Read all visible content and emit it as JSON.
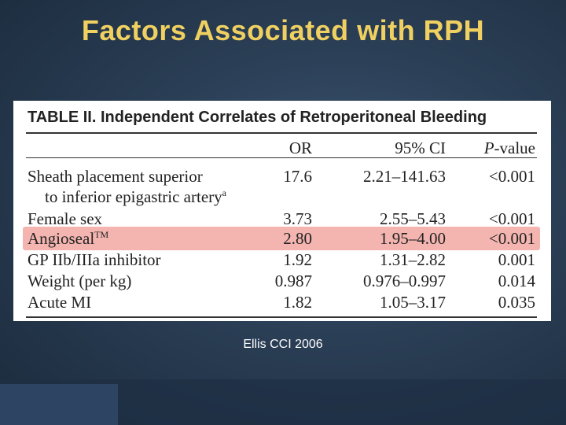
{
  "slide": {
    "title": "Factors Associated with RPH",
    "citation": "Ellis  CCI 2006"
  },
  "table": {
    "heading": "TABLE II.  Independent Correlates of Retroperitoneal Bleeding",
    "columns": {
      "or": "OR",
      "ci": "95% CI",
      "p_italic": "P",
      "p_rest": "-value"
    },
    "rows": [
      {
        "label": "Sheath placement superior",
        "label2": "to inferior epigastric artery",
        "sup": "a",
        "or": "17.6",
        "ci": "2.21–141.63",
        "p": "<0.001"
      },
      {
        "label": "Female sex",
        "or": "3.73",
        "ci": "2.55–5.43",
        "p": "<0.001"
      },
      {
        "label": "Angioseal",
        "sup": "TM",
        "or": "2.80",
        "ci": "1.95–4.00",
        "p": "<0.001",
        "highlighted": true
      },
      {
        "label": "GP IIb/IIIa inhibitor",
        "or": "1.92",
        "ci": "1.31–2.82",
        "p": "0.001"
      },
      {
        "label": "Weight (per kg)",
        "or": "0.987",
        "ci": "0.976–0.997",
        "p": "0.014"
      },
      {
        "label": "Acute MI",
        "or": "1.82",
        "ci": "1.05–3.17",
        "p": "0.035"
      }
    ],
    "highlight_color": "#f4b5b0"
  },
  "colors": {
    "title": "#f0d060",
    "background": "#2a3e55"
  }
}
